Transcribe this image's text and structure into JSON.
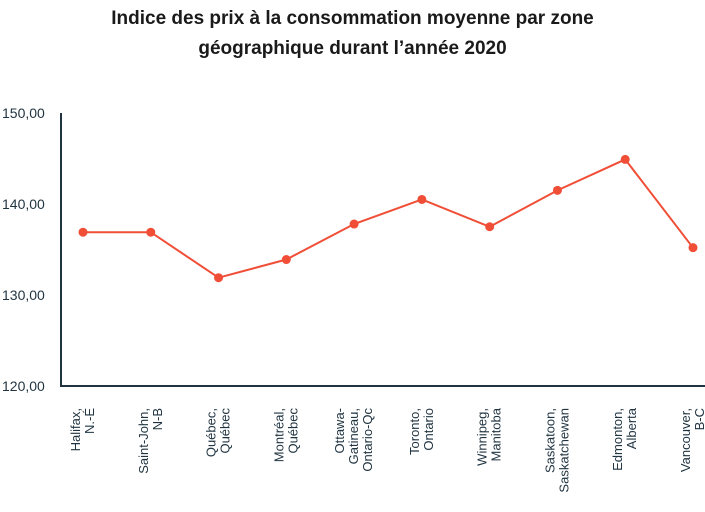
{
  "chart_data": {
    "type": "line",
    "title_line1": "Indice des prix à la consommation moyenne par zone",
    "title_line2": "géographique durant l’année 2020",
    "xlabel": "",
    "ylabel": "",
    "categories": [
      [
        "Halifax,",
        "N.-É"
      ],
      [
        "Saint-John,",
        "N-B"
      ],
      [
        "Québec,",
        "Québec"
      ],
      [
        "Montréal,",
        "Québec"
      ],
      [
        "Ottawa-",
        "Gatineau,",
        "Ontario-Qc"
      ],
      [
        "Toronto,",
        "Ontario"
      ],
      [
        "Winnipeg,",
        "Manitoba"
      ],
      [
        "Saskatoon,",
        "Saskatchewan"
      ],
      [
        "Edmonton,",
        "Alberta"
      ],
      [
        "Vancouver,",
        "B-C"
      ]
    ],
    "series": [
      {
        "values": [
          136.9,
          136.9,
          131.9,
          133.9,
          137.8,
          140.5,
          137.5,
          141.5,
          144.9,
          135.2
        ]
      }
    ],
    "yticks": [
      "120,00",
      "130,00",
      "140,00",
      "150,00"
    ],
    "ylim": [
      120,
      150
    ],
    "grid": false,
    "line_color": "#f04e37",
    "axis_color": "#1f3340"
  }
}
